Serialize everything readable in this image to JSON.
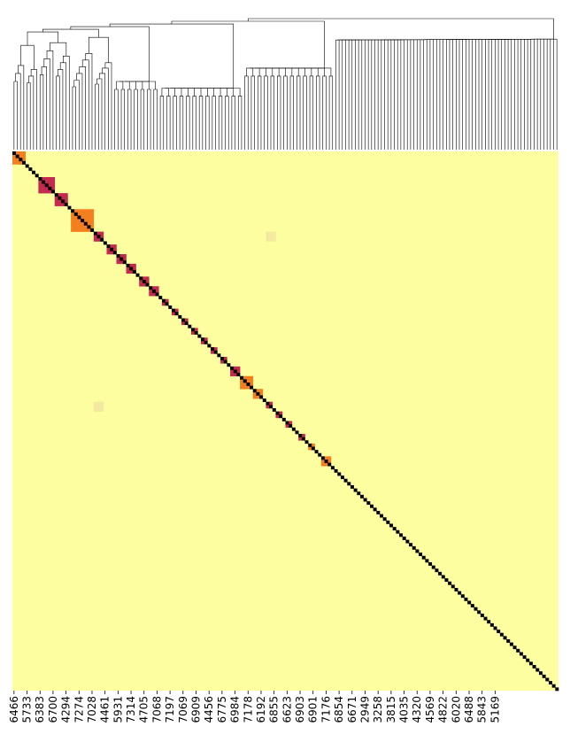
{
  "chart_data": {
    "type": "heatmap",
    "title": "",
    "xlabel": "",
    "ylabel": "",
    "n_rows": 168,
    "n_cols": 168,
    "value_range": [
      0,
      1
    ],
    "colors": {
      "background": "#fdfea0",
      "diagonal": "#000000",
      "high": "#c42a4f",
      "mid": "#f37f1f",
      "low": "#fbc02d",
      "faint": "#f4e9a0",
      "dendrogram": "#000000"
    },
    "tick_labels": [
      "6466",
      "5733",
      "6383",
      "6700",
      "4294",
      "7274",
      "7028",
      "4461",
      "5931",
      "7314",
      "4705",
      "7068",
      "7197",
      "7069",
      "6909",
      "4456",
      "6775",
      "6984",
      "7178",
      "6192",
      "6855",
      "6623",
      "6903",
      "6901",
      "7176",
      "6854",
      "6671",
      "2949",
      "3258",
      "3815",
      "4035",
      "4320",
      "4569",
      "4822",
      "6020",
      "6488",
      "5843",
      "5169"
    ],
    "tick_step": 4,
    "blocks": [
      {
        "start": 0,
        "size": 2,
        "level": 0.85
      },
      {
        "start": 2,
        "size": 2,
        "level": 0.8
      },
      {
        "start": 0,
        "size": 4,
        "level": 0.55
      },
      {
        "start": 8,
        "size": 5,
        "level": 0.85
      },
      {
        "start": 13,
        "size": 4,
        "level": 0.85
      },
      {
        "start": 18,
        "size": 7,
        "level": 0.6
      },
      {
        "start": 25,
        "size": 3,
        "level": 0.85
      },
      {
        "start": 29,
        "size": 3,
        "level": 0.85
      },
      {
        "start": 32,
        "size": 3,
        "level": 0.85
      },
      {
        "start": 35,
        "size": 3,
        "level": 0.85
      },
      {
        "start": 39,
        "size": 3,
        "level": 0.85
      },
      {
        "start": 42,
        "size": 3,
        "level": 0.85
      },
      {
        "start": 46,
        "size": 2,
        "level": 0.85
      },
      {
        "start": 49,
        "size": 2,
        "level": 0.85
      },
      {
        "start": 52,
        "size": 2,
        "level": 0.85
      },
      {
        "start": 55,
        "size": 2,
        "level": 0.85
      },
      {
        "start": 58,
        "size": 2,
        "level": 0.85
      },
      {
        "start": 61,
        "size": 2,
        "level": 0.85
      },
      {
        "start": 64,
        "size": 2,
        "level": 0.85
      },
      {
        "start": 67,
        "size": 3,
        "level": 0.85
      },
      {
        "start": 70,
        "size": 4,
        "level": 0.6
      },
      {
        "start": 74,
        "size": 3,
        "level": 0.55
      },
      {
        "start": 78,
        "size": 2,
        "level": 0.85
      },
      {
        "start": 81,
        "size": 2,
        "level": 0.85
      },
      {
        "start": 84,
        "size": 2,
        "level": 0.85
      },
      {
        "start": 88,
        "size": 2,
        "level": 0.85
      },
      {
        "start": 91,
        "size": 2,
        "level": 0.55
      },
      {
        "start": 95,
        "size": 3,
        "level": 0.55
      }
    ],
    "offdiag": [
      {
        "row": 25,
        "col": 78,
        "size": 3,
        "level": 0.3
      },
      {
        "row": 78,
        "col": 25,
        "size": 3,
        "level": 0.3
      }
    ]
  }
}
